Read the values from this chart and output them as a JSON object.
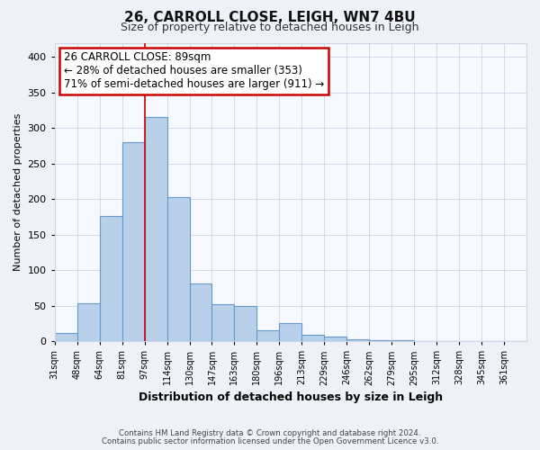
{
  "title": "26, CARROLL CLOSE, LEIGH, WN7 4BU",
  "subtitle": "Size of property relative to detached houses in Leigh",
  "xlabel": "Distribution of detached houses by size in Leigh",
  "ylabel": "Number of detached properties",
  "bar_values": [
    12,
    53,
    176,
    280,
    315,
    203,
    81,
    52,
    50,
    15,
    25,
    9,
    6,
    3,
    1,
    1,
    0,
    0,
    0,
    0,
    0
  ],
  "bin_labels": [
    "31sqm",
    "48sqm",
    "64sqm",
    "81sqm",
    "97sqm",
    "114sqm",
    "130sqm",
    "147sqm",
    "163sqm",
    "180sqm",
    "196sqm",
    "213sqm",
    "229sqm",
    "246sqm",
    "262sqm",
    "279sqm",
    "295sqm",
    "312sqm",
    "328sqm",
    "345sqm",
    "361sqm"
  ],
  "bar_color": "#b8d0ea",
  "bar_edge_color": "#6699cc",
  "ylim": [
    0,
    420
  ],
  "yticks": [
    0,
    50,
    100,
    150,
    200,
    250,
    300,
    350,
    400
  ],
  "vline_x": 4,
  "vline_color": "#cc0000",
  "annotation_title": "26 CARROLL CLOSE: 89sqm",
  "annotation_line1": "← 28% of detached houses are smaller (353)",
  "annotation_line2": "71% of semi-detached houses are larger (911) →",
  "annotation_box_color": "#ffffff",
  "annotation_box_edge": "#cc0000",
  "footer1": "Contains HM Land Registry data © Crown copyright and database right 2024.",
  "footer2": "Contains public sector information licensed under the Open Government Licence v3.0.",
  "bg_color": "#eef2f8",
  "plot_bg_color": "#f5f8fc",
  "grid_color": "#ccd6e8"
}
